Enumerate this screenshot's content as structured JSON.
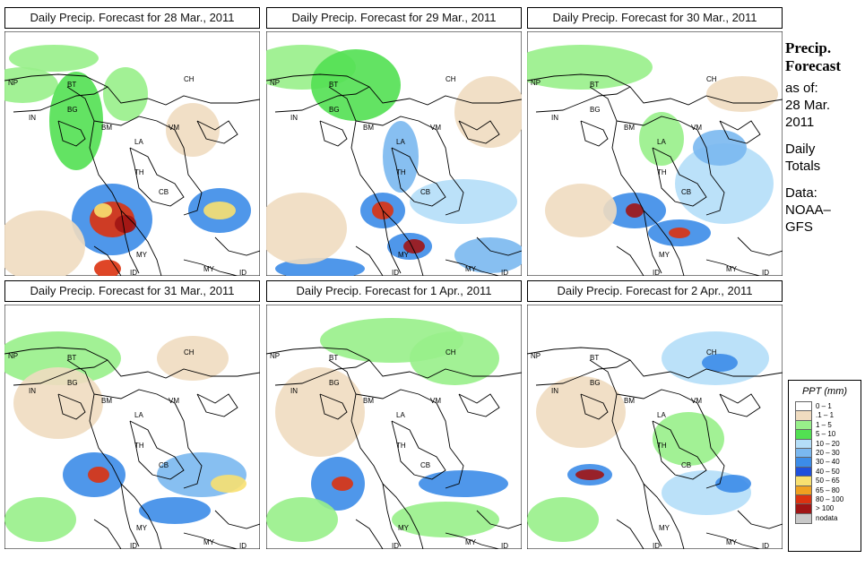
{
  "panels": [
    {
      "title": "Daily Precip. Forecast for  28 Mar., 2011"
    },
    {
      "title": "Daily Precip. Forecast for  29 Mar., 2011"
    },
    {
      "title": "Daily Precip. Forecast for  30 Mar., 2011"
    },
    {
      "title": "Daily Precip. Forecast for  31 Mar., 2011"
    },
    {
      "title": "Daily Precip. Forecast for  1 Apr., 2011"
    },
    {
      "title": "Daily Precip. Forecast for  2 Apr., 2011"
    }
  ],
  "country_labels": [
    "NP",
    "BT",
    "BG",
    "IN",
    "CH",
    "BM",
    "VM",
    "LA",
    "TH",
    "CB",
    "MY",
    "ID",
    "MY",
    "ID"
  ],
  "sidebar": {
    "title_line1": "Precip.",
    "title_line2": "Forecast",
    "asof_line1": "as of:",
    "asof_line2": "28 Mar.",
    "asof_line3": "2011",
    "daily_line1": "Daily",
    "daily_line2": "Totals",
    "data_line1": "Data:",
    "data_line2": "NOAA–",
    "data_line3": "GFS"
  },
  "legend": {
    "title": "PPT (mm)",
    "items": [
      {
        "label": "0 – 1",
        "color": "#ffffff"
      },
      {
        "label": ".1 – 1",
        "color": "#f0dcc0"
      },
      {
        "label": "1 – 5",
        "color": "#98f08a"
      },
      {
        "label": "5 – 10",
        "color": "#52e052"
      },
      {
        "label": "10 – 20",
        "color": "#b4def8"
      },
      {
        "label": "20 – 30",
        "color": "#7ab8f0"
      },
      {
        "label": "30 – 40",
        "color": "#3c8ce8"
      },
      {
        "label": "40 – 50",
        "color": "#1e50dc"
      },
      {
        "label": "50 – 65",
        "color": "#f8e070"
      },
      {
        "label": "65 – 80",
        "color": "#f0a020"
      },
      {
        "label": "80 – 100",
        "color": "#dc3210"
      },
      {
        "label": "> 100",
        "color": "#a01414"
      },
      {
        "label": "nodata",
        "color": "#c8c8c8"
      }
    ]
  }
}
